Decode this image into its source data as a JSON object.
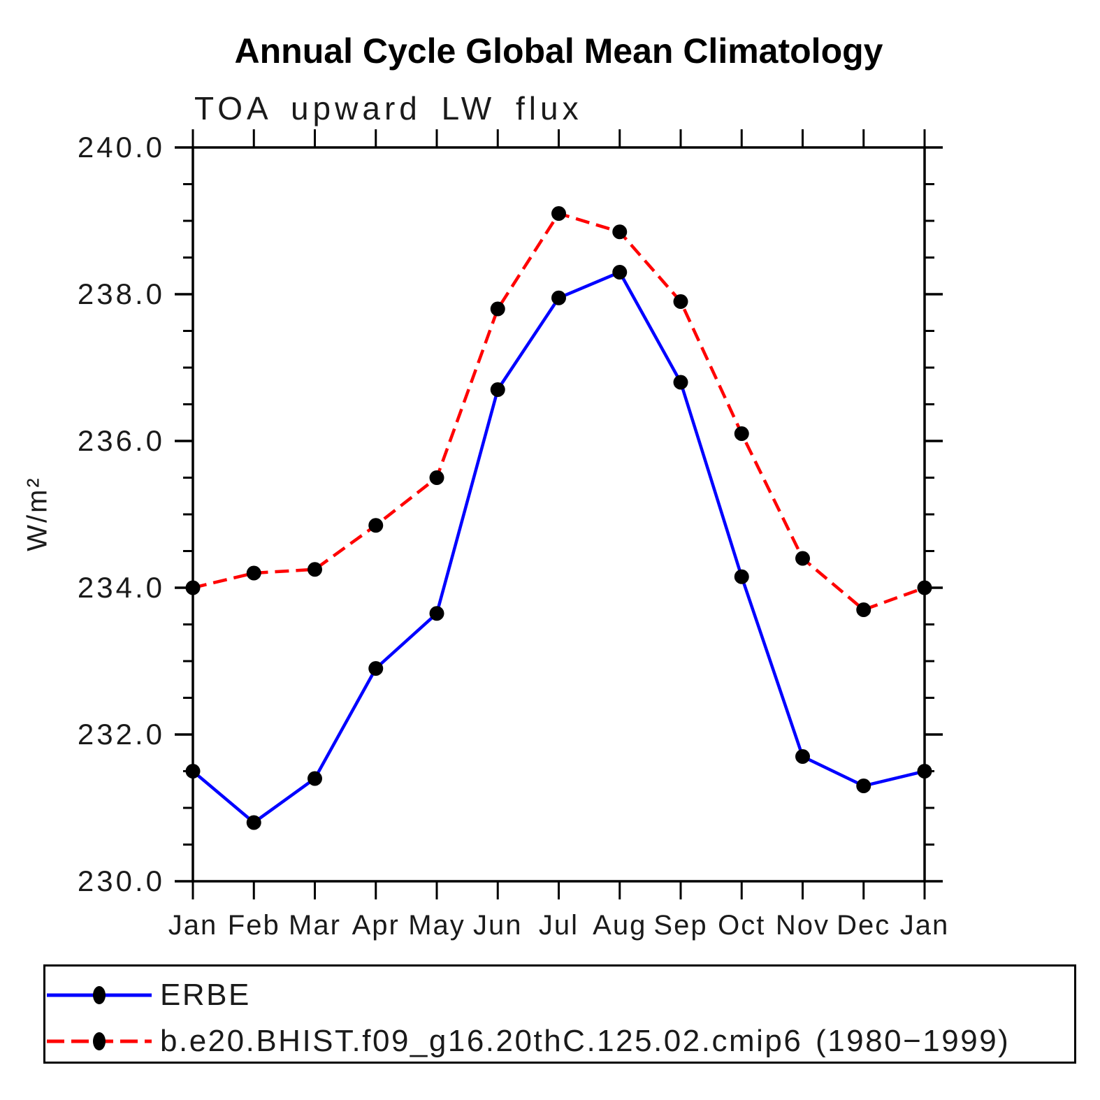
{
  "page": {
    "background": "#FFFFFF",
    "text_color": "#000000"
  },
  "chart_data": {
    "type": "line",
    "title": "Annual Cycle Global Mean Climatology",
    "subtitle": "TOA upward LW flux",
    "xlabel": "",
    "ylabel": "W/m²",
    "categories": [
      "Jan",
      "Feb",
      "Mar",
      "Apr",
      "May",
      "Jun",
      "Jul",
      "Aug",
      "Sep",
      "Oct",
      "Nov",
      "Dec",
      "Jan"
    ],
    "ylim": [
      230.0,
      240.0
    ],
    "y_major_step": 2.0,
    "y_minor_step": 0.5,
    "y_tick_labels": [
      "230.0",
      "232.0",
      "234.0",
      "236.0",
      "238.0",
      "240.0"
    ],
    "grid": false,
    "legend_position": "bottom",
    "series": [
      {
        "name": "ERBE",
        "color": "#0000FF",
        "line_style": "solid",
        "marker": "circle",
        "marker_color": "#000000",
        "values": [
          231.5,
          230.8,
          231.4,
          232.9,
          233.65,
          236.7,
          237.95,
          238.3,
          236.8,
          234.15,
          231.7,
          231.3,
          231.5
        ]
      },
      {
        "name": "b.e20.BHIST.f09_g16.20thC.125.02.cmip6 (1980−1999)",
        "color": "#FF0000",
        "line_style": "dashed",
        "marker": "circle",
        "marker_color": "#000000",
        "values": [
          234.0,
          234.2,
          234.25,
          234.85,
          235.5,
          237.8,
          239.1,
          238.85,
          237.9,
          236.1,
          234.4,
          233.7,
          234.0
        ]
      }
    ]
  }
}
